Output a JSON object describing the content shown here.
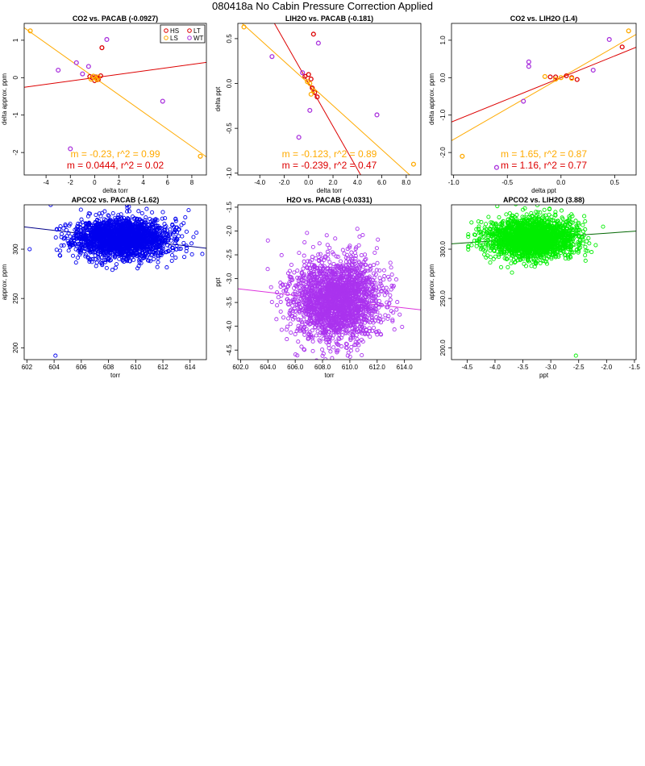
{
  "page_title": "080418a   No Cabin Pressure Correction Applied",
  "chart_data": [
    {
      "type": "scatter",
      "title": "CO2 vs. PACAB (-0.0927)",
      "xlabel": "delta torr",
      "ylabel": "delta approx. ppm",
      "xlim": [
        -5.8,
        9.2
      ],
      "ylim": [
        -2.6,
        1.45
      ],
      "xticks": [
        -4,
        -2,
        0,
        2,
        4,
        6,
        8
      ],
      "yticks": [
        -2,
        -1,
        0,
        1
      ],
      "legend": {
        "placement": "top-right",
        "entries": [
          {
            "label": "HS",
            "color": "#dd0000"
          },
          {
            "label": "LT",
            "color": "#dd0000"
          },
          {
            "label": "LS",
            "color": "#ffaa00"
          },
          {
            "label": "WT",
            "color": "#aa33dd"
          }
        ]
      },
      "series": [
        {
          "color": "#dd0000",
          "points": [
            [
              0.6,
              0.8
            ],
            [
              0.1,
              0.02
            ],
            [
              -0.2,
              0.0
            ],
            [
              0.3,
              -0.05
            ],
            [
              -0.4,
              0.03
            ],
            [
              0.0,
              -0.08
            ],
            [
              0.5,
              0.05
            ]
          ]
        },
        {
          "color": "#ffaa00",
          "points": [
            [
              -5.3,
              1.25
            ],
            [
              8.7,
              -2.1
            ],
            [
              0.1,
              -0.02
            ],
            [
              -0.1,
              0.04
            ],
            [
              0.3,
              0.02
            ],
            [
              -0.3,
              -0.04
            ],
            [
              0.2,
              -0.06
            ]
          ]
        },
        {
          "color": "#aa33dd",
          "points": [
            [
              -1.5,
              0.4
            ],
            [
              1.0,
              1.02
            ],
            [
              -3.0,
              0.2
            ],
            [
              5.6,
              -0.63
            ],
            [
              -1.0,
              0.1
            ],
            [
              -0.5,
              0.3
            ],
            [
              -2.0,
              -1.9
            ]
          ]
        }
      ],
      "lines": [
        {
          "color": "#ffaa00",
          "slope": -0.23,
          "intercept": 0.0
        },
        {
          "color": "#dd0000",
          "slope": 0.0444,
          "intercept": 0.0
        }
      ],
      "annotations": [
        {
          "text": "m = -0.23, r^2 = 0.99",
          "color": "#ffaa00"
        },
        {
          "text": "m = 0.0444, r^2 = 0.02",
          "color": "#dd0000"
        }
      ]
    },
    {
      "type": "scatter",
      "title": "LIH2O vs. PACAB (-0.181)",
      "xlabel": "delta torr",
      "ylabel": "delta ppt",
      "xlim": [
        -5.8,
        9.2
      ],
      "ylim": [
        -1.02,
        0.67
      ],
      "xticks": [
        -4,
        -2,
        0,
        2,
        4,
        6,
        8
      ],
      "yticks": [
        -1.0,
        -0.5,
        0.0,
        0.5
      ],
      "series": [
        {
          "color": "#dd0000",
          "points": [
            [
              0.4,
              0.55
            ],
            [
              0.0,
              0.1
            ],
            [
              0.2,
              0.05
            ],
            [
              0.5,
              -0.1
            ],
            [
              0.7,
              -0.15
            ],
            [
              -0.3,
              0.08
            ],
            [
              0.3,
              -0.05
            ]
          ]
        },
        {
          "color": "#ffaa00",
          "points": [
            [
              -5.3,
              0.63
            ],
            [
              8.6,
              -0.9
            ],
            [
              0.1,
              0.0
            ],
            [
              0.2,
              -0.12
            ],
            [
              -0.1,
              0.02
            ],
            [
              0.4,
              -0.08
            ]
          ]
        },
        {
          "color": "#aa33dd",
          "points": [
            [
              -3.0,
              0.3
            ],
            [
              0.8,
              0.45
            ],
            [
              -0.8,
              -0.6
            ],
            [
              5.6,
              -0.35
            ],
            [
              0.1,
              -0.3
            ],
            [
              -0.5,
              0.12
            ]
          ]
        }
      ],
      "lines": [
        {
          "color": "#ffaa00",
          "slope": -0.123,
          "intercept": 0.0
        },
        {
          "color": "#dd0000",
          "slope": -0.239,
          "intercept": 0.0
        }
      ],
      "annotations": [
        {
          "text": "m = -0.123, r^2 = 0.89",
          "color": "#ffaa00"
        },
        {
          "text": "m = -0.239, r^2 = 0.47",
          "color": "#dd0000"
        }
      ]
    },
    {
      "type": "scatter",
      "title": "CO2 vs. LIH2O (1.4)",
      "xlabel": "delta ppt",
      "ylabel": "delta approx. ppm",
      "xlim": [
        -1.02,
        0.7
      ],
      "ylim": [
        -2.6,
        1.45
      ],
      "xticks": [
        -1.0,
        -0.5,
        0.0,
        0.5
      ],
      "yticks": [
        -2,
        -1,
        0,
        1
      ],
      "series": [
        {
          "color": "#dd0000",
          "points": [
            [
              0.57,
              0.82
            ],
            [
              -0.05,
              0.02
            ],
            [
              0.1,
              0.0
            ],
            [
              0.05,
              0.05
            ],
            [
              -0.1,
              0.02
            ],
            [
              0.15,
              -0.05
            ]
          ]
        },
        {
          "color": "#ffaa00",
          "points": [
            [
              0.63,
              1.25
            ],
            [
              -0.92,
              -2.1
            ],
            [
              0.0,
              0.0
            ],
            [
              -0.15,
              0.03
            ],
            [
              0.1,
              -0.02
            ],
            [
              -0.05,
              -0.04
            ]
          ]
        },
        {
          "color": "#aa33dd",
          "points": [
            [
              -0.3,
              0.42
            ],
            [
              0.45,
              1.02
            ],
            [
              -0.35,
              -0.63
            ],
            [
              -0.6,
              -2.4
            ],
            [
              0.3,
              0.2
            ],
            [
              -0.3,
              0.3
            ]
          ]
        }
      ],
      "lines": [
        {
          "color": "#ffaa00",
          "slope": 1.65,
          "intercept": 0.0
        },
        {
          "color": "#dd0000",
          "slope": 1.16,
          "intercept": 0.0
        }
      ],
      "annotations": [
        {
          "text": "m = 1.65, r^2 = 0.87",
          "color": "#ffaa00"
        },
        {
          "text": "m = 1.16, r^2 = 0.77",
          "color": "#dd0000"
        }
      ]
    },
    {
      "type": "scatter",
      "title": "APCO2 vs. PACAB (-1.62)",
      "xlabel": "torr",
      "ylabel": "approx. ppm",
      "xlim": [
        601.8,
        615.2
      ],
      "ylim": [
        188,
        345
      ],
      "xticks": [
        602,
        604,
        606,
        608,
        610,
        612,
        614
      ],
      "yticks": [
        200,
        250,
        300
      ],
      "series": [
        {
          "color": "#0000ee",
          "cloud": {
            "x_mean": 609.0,
            "x_sd": 1.7,
            "y_mean": 311,
            "y_sd": 10,
            "n": 2200,
            "seed": 11
          },
          "outliers": [
            [
              604.1,
              192
            ],
            [
              609.5,
              343
            ],
            [
              602.2,
              300
            ]
          ]
        }
      ],
      "lines": [
        {
          "color": "#000088",
          "slope": -1.62,
          "x_ref": 609.0,
          "y_ref": 311
        }
      ]
    },
    {
      "type": "scatter",
      "title": "H2O vs. PACAB (-0.0331)",
      "xlabel": "torr",
      "ylabel": "ppt",
      "xlim": [
        601.8,
        615.2
      ],
      "ylim": [
        -4.7,
        -1.45
      ],
      "xticks": [
        602,
        604,
        606,
        608,
        610,
        612,
        614
      ],
      "yticks": [
        -4.5,
        -4.0,
        -3.5,
        -3.0,
        -2.5,
        -2.0,
        -1.5
      ],
      "series": [
        {
          "color": "#aa33ee",
          "cloud": {
            "x_mean": 609.0,
            "x_sd": 1.6,
            "y_mean": -3.45,
            "y_sd": 0.42,
            "n": 2200,
            "seed": 23
          },
          "outliers": [
            [
              608.0,
              -4.62
            ],
            [
              604.0,
              -2.2
            ]
          ]
        }
      ],
      "lines": [
        {
          "color": "#dd33dd",
          "slope": -0.0331,
          "x_ref": 609.0,
          "y_ref": -3.45
        }
      ]
    },
    {
      "type": "scatter",
      "title": "APCO2 vs. LIH2O (3.88)",
      "xlabel": "ppt",
      "ylabel": "approx. ppm",
      "xlim": [
        -4.78,
        -1.47
      ],
      "ylim": [
        188,
        345
      ],
      "xticks": [
        -4.5,
        -4.0,
        -3.5,
        -3.0,
        -2.5,
        -2.0,
        -1.5
      ],
      "yticks": [
        200,
        250,
        300
      ],
      "series": [
        {
          "color": "#00ee00",
          "cloud": {
            "x_mean": -3.35,
            "x_sd": 0.38,
            "y_mean": 311,
            "y_sd": 10,
            "n": 2200,
            "seed": 37
          },
          "outliers": [
            [
              -2.55,
              192
            ],
            [
              -3.5,
              340
            ]
          ]
        }
      ],
      "lines": [
        {
          "color": "#006600",
          "slope": 3.88,
          "x_ref": -3.35,
          "y_ref": 311
        }
      ]
    }
  ]
}
